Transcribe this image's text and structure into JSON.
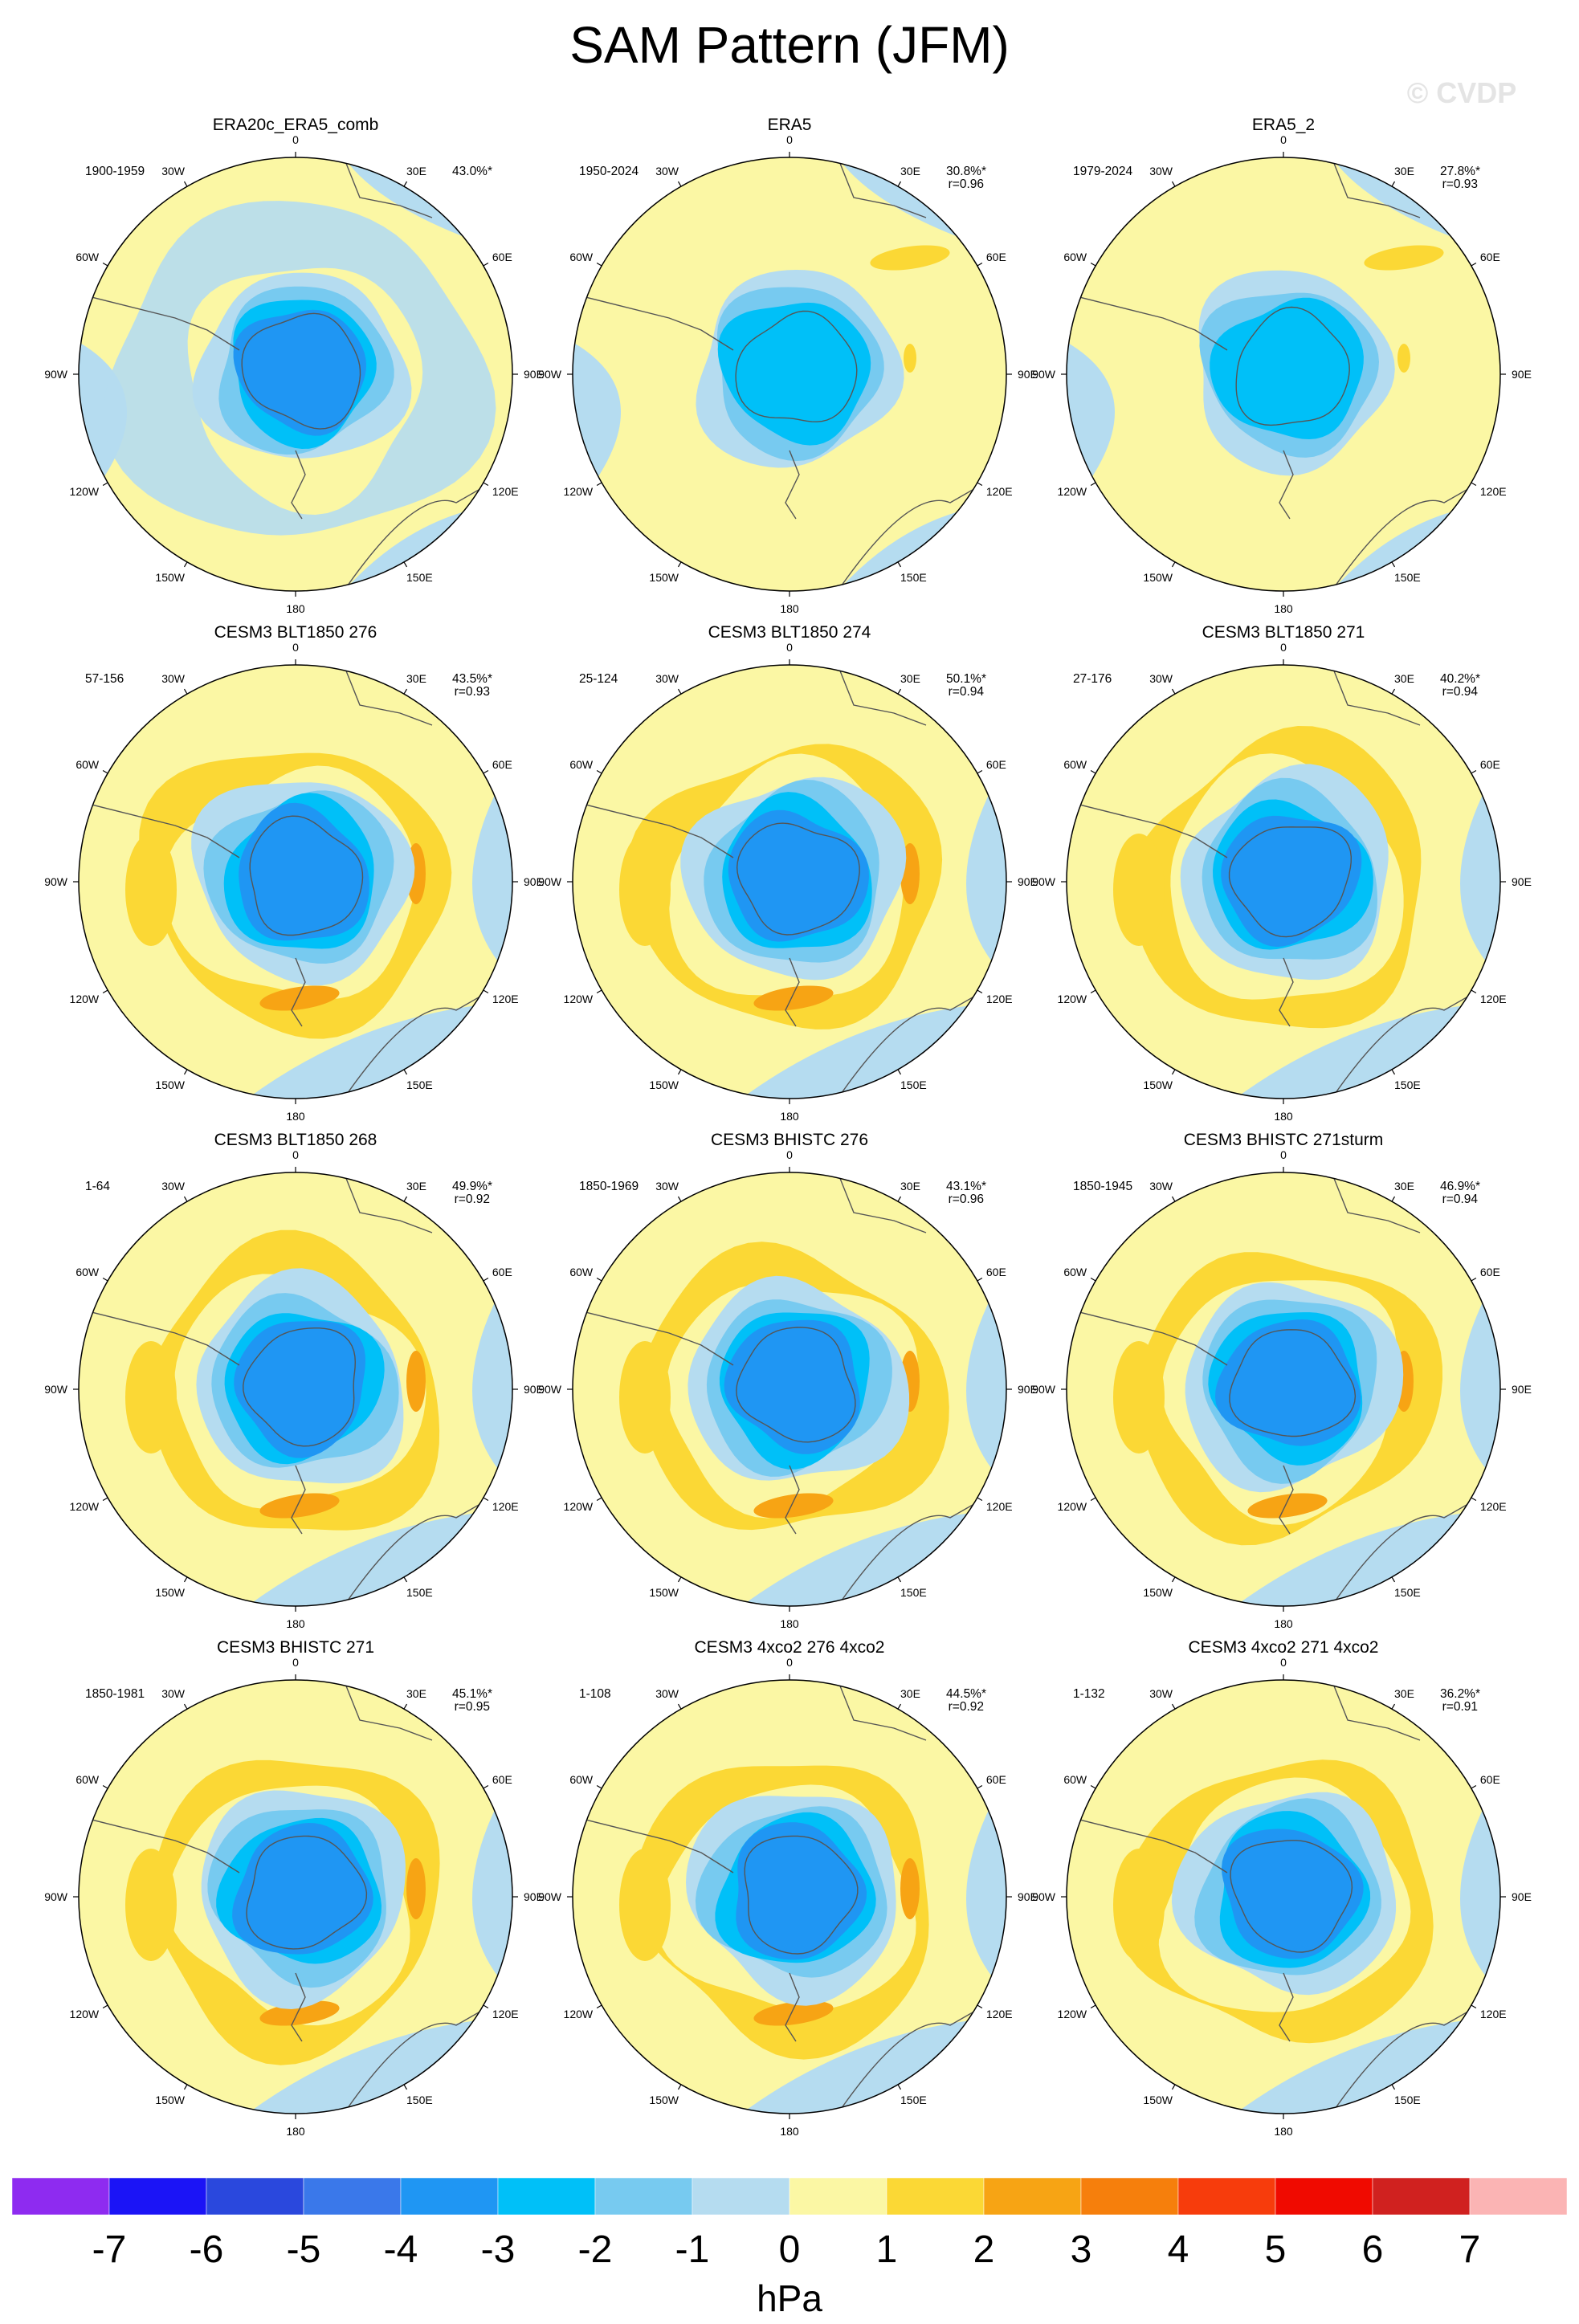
{
  "figure": {
    "title": "SAM Pattern (JFM)",
    "watermark": "© CVDP"
  },
  "chart_data": {
    "type": "heatmap",
    "projection": "south polar stereographic",
    "title": "SAM Pattern (JFM)",
    "units": "hPa",
    "colorbar": {
      "labels": [
        "-7",
        "-6",
        "-5",
        "-4",
        "-3",
        "-2",
        "-1",
        "0",
        "1",
        "2",
        "3",
        "4",
        "5",
        "6",
        "7"
      ],
      "colors": [
        "#8e2bf0",
        "#1b14f6",
        "#2a48dd",
        "#3a78ea",
        "#1f96f3",
        "#00c0f8",
        "#77caf0",
        "#b5dcf0",
        "#fbf7a4",
        "#fbd835",
        "#f7a414",
        "#f67f0c",
        "#f73c0c",
        "#f00a00",
        "#d0211f",
        "#fbb4b4"
      ],
      "levels": [
        -7,
        -6,
        -5,
        -4,
        -3,
        -2,
        -1,
        0,
        1,
        2,
        3,
        4,
        5,
        6,
        7
      ]
    },
    "longitude_labels": [
      "0",
      "30E",
      "60E",
      "90E",
      "120E",
      "150E",
      "180",
      "150W",
      "120W",
      "90W",
      "60W",
      "30W"
    ],
    "panels": [
      {
        "title": "ERA20c_ERA5_comb",
        "period": "1900-1959",
        "pct": "43.0%*",
        "r": "",
        "center_min_hPa": -4.2,
        "ring_max_hPa": 1.0
      },
      {
        "title": "ERA5",
        "period": "1950-2024",
        "pct": "30.8%*",
        "r": "r=0.96",
        "center_min_hPa": -3.1,
        "ring_max_hPa": 1.0
      },
      {
        "title": "ERA5_2",
        "period": "1979-2024",
        "pct": "27.8%*",
        "r": "r=0.93",
        "center_min_hPa": -3.1,
        "ring_max_hPa": 1.2
      },
      {
        "title": "CESM3 BLT1850 276",
        "period": "57-156",
        "pct": "43.5%*",
        "r": "r=0.93",
        "center_min_hPa": -3.6,
        "ring_max_hPa": 2.2
      },
      {
        "title": "CESM3 BLT1850 274",
        "period": "25-124",
        "pct": "50.1%*",
        "r": "r=0.94",
        "center_min_hPa": -4.3,
        "ring_max_hPa": 2.4
      },
      {
        "title": "CESM3 BLT1850 271",
        "period": "27-176",
        "pct": "40.2%*",
        "r": "r=0.94",
        "center_min_hPa": -3.6,
        "ring_max_hPa": 2.0
      },
      {
        "title": "CESM3 BLT1850 268",
        "period": "1-64",
        "pct": "49.9%*",
        "r": "r=0.92",
        "center_min_hPa": -4.2,
        "ring_max_hPa": 2.4
      },
      {
        "title": "CESM3 BHISTC 276",
        "period": "1850-1969",
        "pct": "43.1%*",
        "r": "r=0.96",
        "center_min_hPa": -3.7,
        "ring_max_hPa": 2.2
      },
      {
        "title": "CESM3 BHISTC 271sturm",
        "period": "1850-1945",
        "pct": "46.9%*",
        "r": "r=0.94",
        "center_min_hPa": -3.9,
        "ring_max_hPa": 2.3
      },
      {
        "title": "CESM3 BHISTC 271",
        "period": "1850-1981",
        "pct": "45.1%*",
        "r": "r=0.95",
        "center_min_hPa": -3.9,
        "ring_max_hPa": 2.2
      },
      {
        "title": "CESM3 4xco2 276 4xco2",
        "period": "1-108",
        "pct": "44.5%*",
        "r": "r=0.92",
        "center_min_hPa": -4.3,
        "ring_max_hPa": 2.3
      },
      {
        "title": "CESM3 4xco2 271 4xco2",
        "period": "1-132",
        "pct": "36.2%*",
        "r": "r=0.91",
        "center_min_hPa": -3.6,
        "ring_max_hPa": 2.1
      }
    ]
  }
}
